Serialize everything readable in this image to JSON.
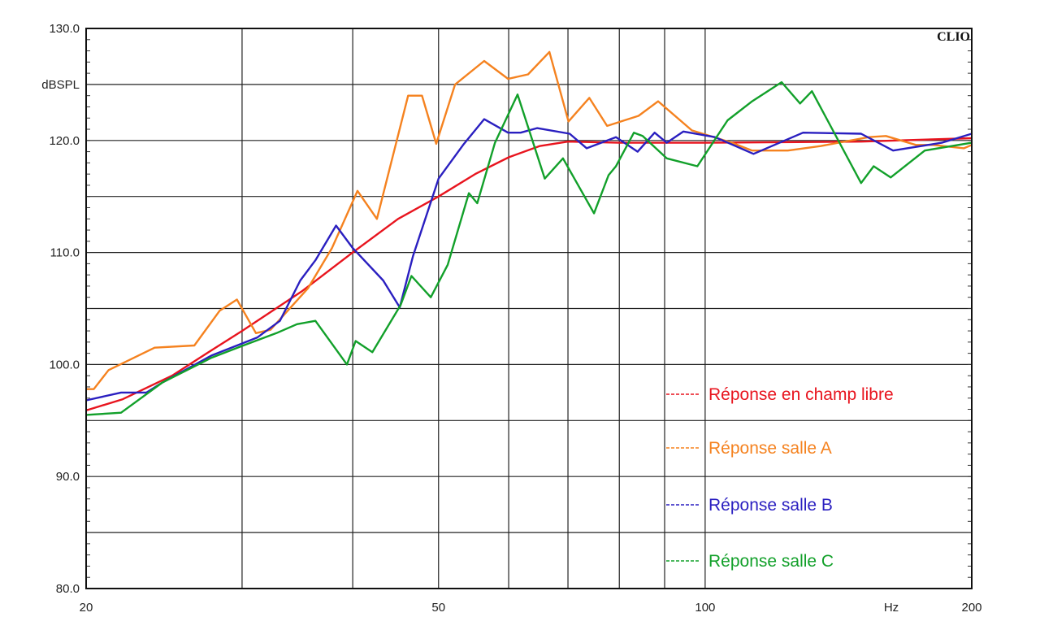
{
  "chart_data": {
    "type": "line",
    "brand": "CLIO",
    "ylabel": "dBSPL",
    "xlabel": "Hz",
    "xscale": "log",
    "xlim": [
      20,
      200
    ],
    "ylim": [
      80,
      130
    ],
    "grid": true,
    "x_gridlines": [
      30,
      40,
      50,
      60,
      70,
      80,
      90,
      100
    ],
    "y_gridlines": [
      85,
      90,
      95,
      100,
      105,
      110,
      115,
      120,
      125
    ],
    "x_tick_labels": [
      {
        "v": 20,
        "t": "20"
      },
      {
        "v": 50,
        "t": "50"
      },
      {
        "v": 100,
        "t": "100"
      },
      {
        "v": 200,
        "t": "200"
      }
    ],
    "y_tick_labels": [
      {
        "v": 130,
        "t": "130.0"
      },
      {
        "v": 120,
        "t": "120.0"
      },
      {
        "v": 110,
        "t": "110.0"
      },
      {
        "v": 100,
        "t": "100.0"
      },
      {
        "v": 90,
        "t": "90.0"
      },
      {
        "v": 80,
        "t": "80.0"
      }
    ],
    "legend_placement": "bottom-right",
    "series": [
      {
        "name": "Réponse en champ libre",
        "color": "#e8141e",
        "points": [
          [
            20,
            95.9
          ],
          [
            22,
            96.9
          ],
          [
            25,
            99.0
          ],
          [
            28,
            101.5
          ],
          [
            30,
            103.0
          ],
          [
            35,
            106.5
          ],
          [
            40,
            110.0
          ],
          [
            45,
            113.0
          ],
          [
            50,
            115.0
          ],
          [
            55,
            117.0
          ],
          [
            60,
            118.5
          ],
          [
            65,
            119.5
          ],
          [
            70,
            119.9
          ],
          [
            80,
            119.8
          ],
          [
            100,
            119.8
          ],
          [
            150,
            119.9
          ],
          [
            200,
            120.2
          ]
        ]
      },
      {
        "name": "Réponse salle A",
        "color": "#f5821f",
        "points": [
          [
            20,
            97.8
          ],
          [
            20.4,
            97.8
          ],
          [
            21.2,
            99.5
          ],
          [
            23.9,
            101.5
          ],
          [
            26.5,
            101.7
          ],
          [
            28.3,
            104.8
          ],
          [
            29.6,
            105.8
          ],
          [
            31.1,
            102.8
          ],
          [
            32.3,
            103.1
          ],
          [
            35.6,
            106.8
          ],
          [
            37.9,
            110.4
          ],
          [
            40.5,
            115.5
          ],
          [
            42.6,
            113.0
          ],
          [
            46.2,
            124.0
          ],
          [
            47.9,
            124.0
          ],
          [
            49.7,
            119.7
          ],
          [
            52.2,
            125.0
          ],
          [
            56.3,
            127.1
          ],
          [
            59.9,
            125.5
          ],
          [
            63.1,
            125.9
          ],
          [
            66.7,
            127.9
          ],
          [
            70.1,
            121.7
          ],
          [
            74.0,
            123.8
          ],
          [
            77.5,
            121.3
          ],
          [
            84.1,
            122.2
          ],
          [
            88.5,
            123.5
          ],
          [
            96.6,
            120.9
          ],
          [
            107.2,
            119.8
          ],
          [
            113,
            119.1
          ],
          [
            124,
            119.1
          ],
          [
            135,
            119.5
          ],
          [
            153,
            120.3
          ],
          [
            160,
            120.4
          ],
          [
            173,
            119.6
          ],
          [
            181,
            119.6
          ],
          [
            196,
            119.3
          ],
          [
            200,
            119.6
          ]
        ]
      },
      {
        "name": "Réponse salle B",
        "color": "#2a1fc0",
        "points": [
          [
            20,
            96.8
          ],
          [
            21.9,
            97.5
          ],
          [
            23.4,
            97.5
          ],
          [
            24.4,
            98.4
          ],
          [
            27.7,
            100.8
          ],
          [
            31.2,
            102.4
          ],
          [
            33.1,
            103.9
          ],
          [
            34.9,
            107.5
          ],
          [
            36.3,
            109.3
          ],
          [
            38.3,
            112.4
          ],
          [
            40,
            110.4
          ],
          [
            43.3,
            107.5
          ],
          [
            45.2,
            105.1
          ],
          [
            46.8,
            109.7
          ],
          [
            50,
            116.6
          ],
          [
            53.3,
            119.6
          ],
          [
            56.3,
            121.9
          ],
          [
            59.9,
            120.7
          ],
          [
            61.9,
            120.7
          ],
          [
            64.6,
            121.1
          ],
          [
            70.3,
            120.6
          ],
          [
            73.5,
            119.3
          ],
          [
            79.3,
            120.3
          ],
          [
            83.9,
            119.0
          ],
          [
            87.7,
            120.7
          ],
          [
            90.5,
            119.8
          ],
          [
            94.5,
            120.8
          ],
          [
            102.6,
            120.3
          ],
          [
            113.4,
            118.8
          ],
          [
            129,
            120.7
          ],
          [
            150,
            120.6
          ],
          [
            163,
            119.1
          ],
          [
            185,
            119.8
          ],
          [
            200,
            120.6
          ]
        ]
      },
      {
        "name": "Réponse salle C",
        "color": "#12a02a",
        "points": [
          [
            20,
            95.5
          ],
          [
            21.9,
            95.7
          ],
          [
            24.4,
            98.4
          ],
          [
            27.7,
            100.6
          ],
          [
            30.1,
            101.7
          ],
          [
            32.8,
            102.8
          ],
          [
            34.6,
            103.6
          ],
          [
            36.3,
            103.9
          ],
          [
            39.4,
            100.0
          ],
          [
            40.3,
            102.1
          ],
          [
            42.1,
            101.1
          ],
          [
            45.3,
            105.3
          ],
          [
            46.6,
            107.9
          ],
          [
            49,
            106.0
          ],
          [
            51.2,
            108.9
          ],
          [
            54.1,
            115.3
          ],
          [
            55.3,
            114.4
          ],
          [
            57.9,
            119.8
          ],
          [
            61.4,
            124.1
          ],
          [
            65.9,
            116.6
          ],
          [
            69.1,
            118.4
          ],
          [
            74.9,
            113.5
          ],
          [
            77.8,
            116.9
          ],
          [
            79.3,
            117.7
          ],
          [
            83.1,
            120.7
          ],
          [
            85,
            120.4
          ],
          [
            90.5,
            118.4
          ],
          [
            98,
            117.7
          ],
          [
            106,
            121.8
          ],
          [
            113,
            123.5
          ],
          [
            122,
            125.2
          ],
          [
            128,
            123.3
          ],
          [
            132,
            124.4
          ],
          [
            150,
            116.2
          ],
          [
            155,
            117.7
          ],
          [
            162,
            116.7
          ],
          [
            177,
            119.1
          ],
          [
            200,
            119.8
          ]
        ]
      }
    ]
  }
}
